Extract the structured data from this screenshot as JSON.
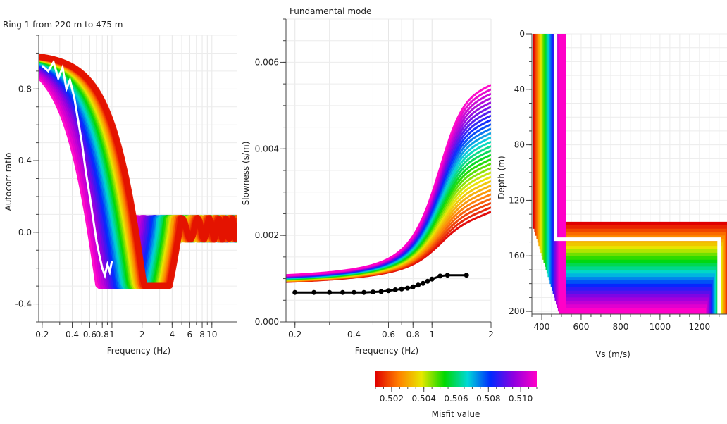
{
  "chart_data": [
    {
      "type": "line",
      "title": "Ring 1 from 220 m to 475 m",
      "xlabel": "Frequency (Hz)",
      "ylabel": "Autocorr ratio",
      "xscale": "log",
      "xlim": [
        0.185,
        18
      ],
      "ylim": [
        -0.5,
        1.1
      ],
      "x_ticks": [
        {
          "v": 0.2,
          "label": "0.2"
        },
        {
          "v": 0.4,
          "label": "0.4"
        },
        {
          "v": 0.6,
          "label": "0.6"
        },
        {
          "v": 0.8,
          "label": "0.8"
        },
        {
          "v": 1,
          "label": "1"
        },
        {
          "v": 2,
          "label": "2"
        },
        {
          "v": 4,
          "label": "4"
        },
        {
          "v": 6,
          "label": "6"
        },
        {
          "v": 8,
          "label": "8"
        },
        {
          "v": 10,
          "label": "10"
        }
      ],
      "y_ticks": [
        {
          "v": 0.8,
          "label": "0.8"
        },
        {
          "v": 0.4,
          "label": "0.4"
        },
        {
          "v": 0.0,
          "label": "0.0"
        },
        {
          "v": -0.4,
          "label": "-0.4"
        }
      ],
      "grid": true,
      "band_misfit_range": [
        0.501,
        0.511
      ],
      "measured_curve": {
        "color": "#ffffff",
        "x": [
          0.2,
          0.23,
          0.26,
          0.29,
          0.32,
          0.35,
          0.38,
          0.42,
          0.46,
          0.5,
          0.55,
          0.6,
          0.65,
          0.7,
          0.75,
          0.8,
          0.85,
          0.9,
          0.95,
          1.0
        ],
        "y": [
          0.93,
          0.9,
          0.95,
          0.86,
          0.92,
          0.8,
          0.85,
          0.75,
          0.62,
          0.5,
          0.33,
          0.2,
          0.07,
          -0.05,
          -0.13,
          -0.2,
          -0.24,
          -0.18,
          -0.22,
          -0.16
        ]
      }
    },
    {
      "type": "line",
      "title": "Fundamental mode",
      "xlabel": "Frequency (Hz)",
      "ylabel": "Slowness (s/m)",
      "xscale": "log",
      "xlim": [
        0.18,
        2.0
      ],
      "ylim": [
        0.0,
        0.007
      ],
      "x_ticks": [
        {
          "v": 0.2,
          "label": "0.2"
        },
        {
          "v": 0.4,
          "label": "0.4"
        },
        {
          "v": 0.6,
          "label": "0.6"
        },
        {
          "v": 0.8,
          "label": "0.8"
        },
        {
          "v": 1,
          "label": "1"
        },
        {
          "v": 2,
          "label": "2"
        }
      ],
      "y_ticks": [
        {
          "v": 0.0,
          "label": "0.000"
        },
        {
          "v": 0.002,
          "label": "0.002"
        },
        {
          "v": 0.004,
          "label": "0.004"
        },
        {
          "v": 0.006,
          "label": "0.006"
        }
      ],
      "grid": true,
      "measured_curve": {
        "color": "#000000",
        "x": [
          0.2,
          0.25,
          0.3,
          0.35,
          0.4,
          0.45,
          0.5,
          0.55,
          0.6,
          0.65,
          0.7,
          0.75,
          0.8,
          0.85,
          0.9,
          0.95,
          1.0,
          1.1,
          1.2,
          1.5
        ],
        "y": [
          0.00068,
          0.00068,
          0.00068,
          0.00068,
          0.00068,
          0.00068,
          0.00069,
          0.0007,
          0.00072,
          0.00074,
          0.00076,
          0.00078,
          0.00081,
          0.00085,
          0.00089,
          0.00094,
          0.00099,
          0.00106,
          0.00108,
          0.00108
        ]
      }
    },
    {
      "type": "line",
      "title": "",
      "xlabel": "Vs (m/s)",
      "ylabel": "Depth (m)",
      "xlim": [
        350,
        1340
      ],
      "ylim": [
        0,
        202
      ],
      "y_inverted": true,
      "x_ticks": [
        {
          "v": 400,
          "label": "400"
        },
        {
          "v": 600,
          "label": "600"
        },
        {
          "v": 800,
          "label": "800"
        },
        {
          "v": 1000,
          "label": "1000"
        },
        {
          "v": 1200,
          "label": "1200"
        }
      ],
      "y_ticks": [
        {
          "v": 0,
          "label": "0"
        },
        {
          "v": 40,
          "label": "40"
        },
        {
          "v": 80,
          "label": "80"
        },
        {
          "v": 120,
          "label": "120"
        },
        {
          "v": 160,
          "label": "160"
        },
        {
          "v": 200,
          "label": "200"
        }
      ],
      "grid": true,
      "best_profile": {
        "color": "#ffffff",
        "vs": [
          470,
          470,
          1300,
          1300
        ],
        "depth": [
          0,
          148,
          148,
          202
        ]
      }
    }
  ],
  "colorbar": {
    "label": "Misfit value",
    "range": [
      0.501,
      0.511
    ],
    "ticks": [
      {
        "v": 0.502,
        "label": "0.502"
      },
      {
        "v": 0.504,
        "label": "0.504"
      },
      {
        "v": 0.506,
        "label": "0.506"
      },
      {
        "v": 0.508,
        "label": "0.508"
      },
      {
        "v": 0.51,
        "label": "0.510"
      }
    ],
    "colors": [
      "#e00000",
      "#ff7f00",
      "#e8e800",
      "#00d800",
      "#00d8d8",
      "#0028ff",
      "#9000e0",
      "#ff00c8"
    ]
  }
}
